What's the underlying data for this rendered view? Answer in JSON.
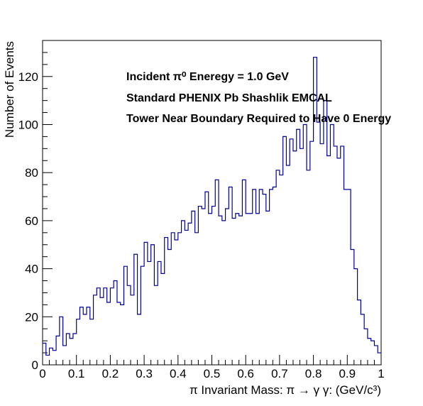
{
  "chart_data": {
    "type": "histogram",
    "xlabel": "π Invariant Mass:  π → γ γ: (GeV/c³)",
    "ylabel": "Number of Events",
    "xlim": [
      0,
      1
    ],
    "ylim": [
      0,
      135
    ],
    "x_ticks": [
      "0",
      "0.1",
      "0.2",
      "0.3",
      "0.4",
      "0.5",
      "0.6",
      "0.7",
      "0.8",
      "0.9",
      "1"
    ],
    "y_ticks": [
      "0",
      "20",
      "40",
      "60",
      "80",
      "100",
      "120"
    ],
    "annotations": [
      "Incident  π⁰ Eneregy = 1.0 GeV",
      "Standard PHENIX Pb Shashlik EMCAL",
      "Tower Near Boundary Required to Have 0 Energy"
    ],
    "bin_width": 0.01,
    "values": [
      9,
      4,
      7,
      6,
      12,
      20,
      8,
      13,
      11,
      13,
      19,
      24,
      21,
      24,
      19,
      29,
      32,
      28,
      32,
      26,
      32,
      35,
      26,
      25,
      41,
      33,
      29,
      46,
      21,
      41,
      51,
      43,
      50,
      33,
      43,
      38,
      53,
      48,
      55,
      52,
      55,
      60,
      56,
      59,
      64,
      55,
      66,
      65,
      72,
      63,
      66,
      77,
      62,
      60,
      65,
      74,
      61,
      63,
      62,
      77,
      63,
      63,
      73,
      63,
      73,
      71,
      64,
      73,
      74,
      81,
      79,
      95,
      83,
      94,
      89,
      98,
      90,
      100,
      81,
      93,
      128,
      101,
      92,
      110,
      87,
      100,
      91,
      86,
      91,
      73,
      73,
      48,
      40,
      27,
      21,
      15,
      11,
      10,
      8,
      5
    ]
  }
}
